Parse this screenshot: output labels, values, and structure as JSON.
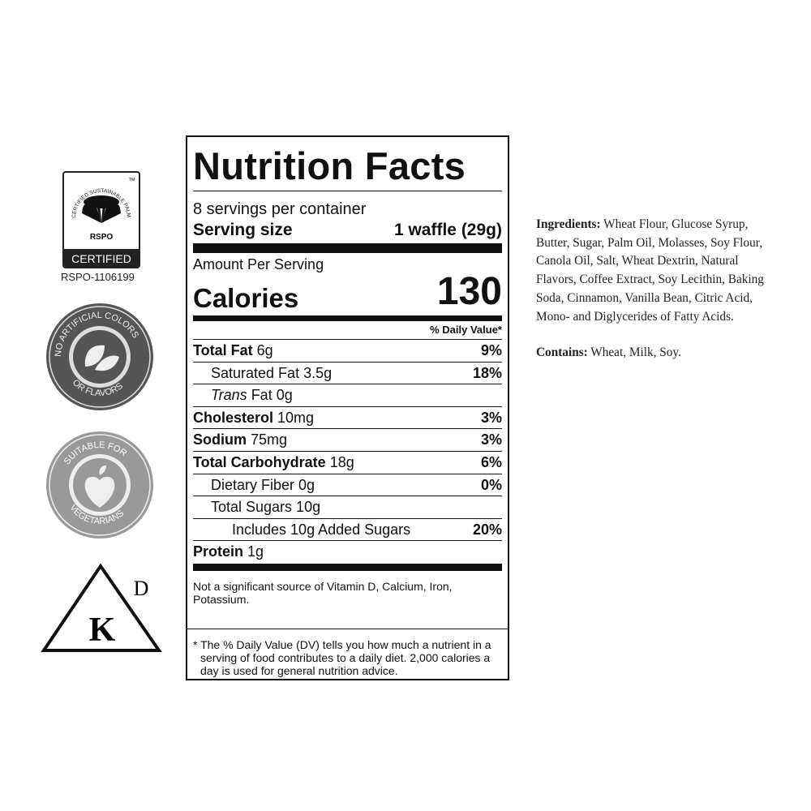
{
  "badges": {
    "rspo": {
      "arc_text": "CERTIFIED SUSTAINABLE PALM OIL",
      "tm": "TM",
      "brand": "RSPO",
      "certified": "CERTIFIED",
      "id": "RSPO-1106199"
    },
    "no_artificial": {
      "text_top": "NO ARTIFICIAL COLORS",
      "text_bottom": "OR FLAVORS",
      "icon": "leaf-icon"
    },
    "vegetarian": {
      "text_top": "SUITABLE FOR",
      "text_bottom": "VEGETARIANS",
      "icon": "apple-heart-icon"
    },
    "kosher": {
      "letter": "K",
      "sub": "D"
    }
  },
  "label": {
    "title": "Nutrition Facts",
    "servings": "8 servings per container",
    "serving_size_label": "Serving size",
    "serving_size_value": "1 waffle (29g)",
    "amount_per_serving": "Amount Per Serving",
    "calories_label": "Calories",
    "calories_value": "130",
    "dv_header": "% Daily Value*",
    "rows": [
      {
        "bold": "Total Fat",
        "rest": " 6g",
        "pct": "9%",
        "indent": 0
      },
      {
        "bold": "",
        "rest": "Saturated Fat 3.5g",
        "pct": "18%",
        "indent": 1
      },
      {
        "bold": "",
        "italic": "Trans",
        "rest": " Fat 0g",
        "pct": "",
        "indent": 1
      },
      {
        "bold": "Cholesterol",
        "rest": " 10mg",
        "pct": "3%",
        "indent": 0
      },
      {
        "bold": "Sodium",
        "rest": " 75mg",
        "pct": "3%",
        "indent": 0
      },
      {
        "bold": "Total Carbohydrate",
        "rest": " 18g",
        "pct": "6%",
        "indent": 0
      },
      {
        "bold": "",
        "rest": "Dietary Fiber 0g",
        "pct": "0%",
        "indent": 1
      },
      {
        "bold": "",
        "rest": "Total Sugars 10g",
        "pct": "",
        "indent": 1
      },
      {
        "bold": "",
        "rest": "Includes 10g Added Sugars",
        "pct": "20%",
        "indent": 2
      },
      {
        "bold": "Protein",
        "rest": " 1g",
        "pct": "",
        "indent": 0
      }
    ],
    "note1": "Not a significant source of Vitamin D, Calcium, Iron, Potassium.",
    "note2": "* The % Daily Value (DV) tells you how much a nutrient in a serving of food contributes to a daily diet. 2,000 calories a day is used for general nutrition advice."
  },
  "ingredients": {
    "label": "Ingredients:",
    "text": " Wheat Flour, Glucose Syrup, Butter, Sugar, Palm Oil, Molasses, Soy Flour, Canola Oil, Salt, Wheat Dextrin, Natural Flavors, Coffee Extract, Soy Lecithin, Baking Soda, Cinnamon, Vanilla Bean, Citric Acid, Mono- and Diglycerides of Fatty Acids.",
    "contains_label": "Contains:",
    "contains_text": " Wheat, Milk, Soy."
  }
}
